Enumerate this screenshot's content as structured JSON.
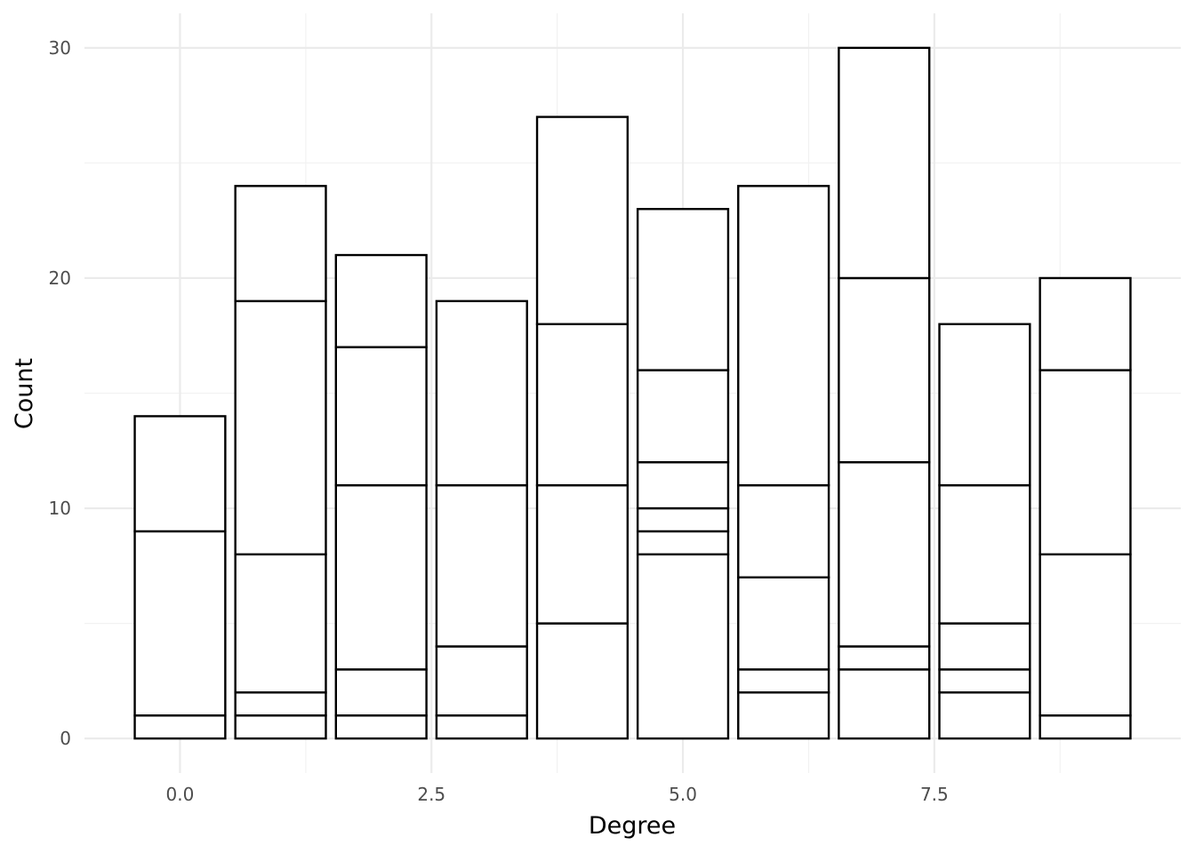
{
  "chart_data": {
    "type": "bar",
    "stacked": true,
    "title": "",
    "xlabel": "Degree",
    "ylabel": "Count",
    "xlim": [
      -0.95,
      9.95
    ],
    "ylim": [
      -1.5,
      31.5
    ],
    "x_ticks": [
      0.0,
      2.5,
      5.0,
      7.5
    ],
    "x_tick_labels": [
      "0.0",
      "2.5",
      "5.0",
      "7.5"
    ],
    "y_ticks": [
      0,
      10,
      20,
      30
    ],
    "y_tick_labels": [
      "0",
      "10",
      "20",
      "30"
    ],
    "grid": true,
    "legend": "none",
    "fill_color": "#ffffff",
    "outline_color": "#000000",
    "bar_width": 0.9,
    "bars": [
      {
        "x": 0,
        "segments": [
          1,
          8,
          5
        ],
        "total": 14
      },
      {
        "x": 1,
        "segments": [
          1,
          1,
          6,
          11,
          5
        ],
        "total": 24
      },
      {
        "x": 2,
        "segments": [
          1,
          2,
          8,
          6,
          4
        ],
        "total": 21
      },
      {
        "x": 3,
        "segments": [
          1,
          3,
          7,
          8
        ],
        "total": 19
      },
      {
        "x": 4,
        "segments": [
          5,
          6,
          7,
          9
        ],
        "total": 27
      },
      {
        "x": 5,
        "segments": [
          8,
          1,
          1,
          2,
          4,
          7
        ],
        "total": 23
      },
      {
        "x": 6,
        "segments": [
          2,
          1,
          4,
          4,
          13
        ],
        "total": 24
      },
      {
        "x": 7,
        "segments": [
          3,
          1,
          8,
          8,
          10
        ],
        "total": 30
      },
      {
        "x": 8,
        "segments": [
          2,
          1,
          2,
          6,
          7
        ],
        "total": 18
      },
      {
        "x": 9,
        "segments": [
          1,
          7,
          8,
          4
        ],
        "total": 20
      }
    ]
  }
}
